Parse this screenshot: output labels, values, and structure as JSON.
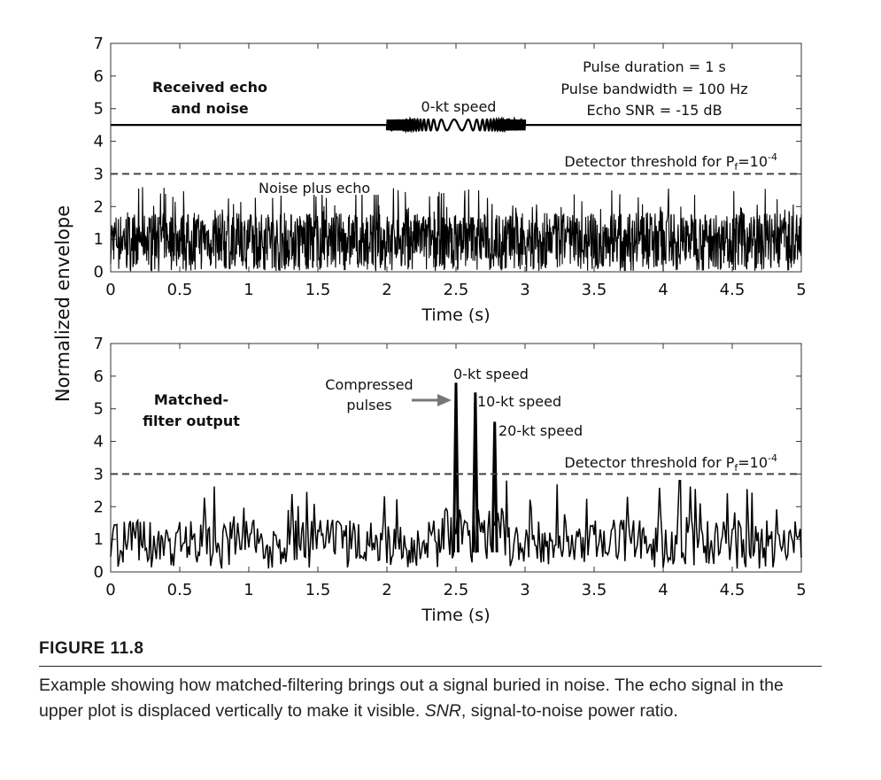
{
  "chart_data": [
    {
      "type": "line",
      "panel": "top",
      "xlabel": "Time (s)",
      "ylabel": "Normalized envelope",
      "xlim": [
        0,
        5
      ],
      "ylim": [
        0,
        7
      ],
      "xticks": [
        "0",
        "0.5",
        "1",
        "1.5",
        "2",
        "2.5",
        "3",
        "3.5",
        "4",
        "4.5",
        "5"
      ],
      "yticks": [
        "0",
        "1",
        "2",
        "3",
        "4",
        "5",
        "6",
        "7"
      ],
      "panel_label": [
        "Received echo",
        "and noise"
      ],
      "params": [
        "Pulse duration = 1 s",
        "Pulse bandwidth = 100 Hz",
        "Echo SNR = -15 dB"
      ],
      "echo_label": "0-kt speed",
      "noise_label": "Noise plus echo",
      "threshold": {
        "value": 3.0,
        "label_main": "Detector threshold for P",
        "label_sub": "f",
        "label_mid": "=10",
        "label_sup": "-4"
      },
      "series": [
        {
          "style": "offset-line",
          "baseline": 4.5,
          "pulse": [
            2.0,
            3.0
          ]
        },
        {
          "style": "noise",
          "x_start": 0,
          "x_end": 5,
          "mean": 0.9,
          "max": 2.6
        }
      ]
    },
    {
      "type": "line",
      "panel": "bottom",
      "xlabel": "Time (s)",
      "xlim": [
        0,
        5
      ],
      "ylim": [
        0,
        7
      ],
      "xticks": [
        "0",
        "0.5",
        "1",
        "1.5",
        "2",
        "2.5",
        "3",
        "3.5",
        "4",
        "4.5",
        "5"
      ],
      "yticks": [
        "0",
        "1",
        "2",
        "3",
        "4",
        "5",
        "6",
        "7"
      ],
      "panel_label": [
        "Matched-",
        "filter output"
      ],
      "pulses_label": [
        "Compressed",
        "pulses"
      ],
      "threshold": {
        "value": 3.0,
        "label_main": "Detector threshold for P",
        "label_sub": "f",
        "label_mid": "=10",
        "label_sup": "-4"
      },
      "peaks": [
        {
          "x": 2.5,
          "y": 5.8,
          "label": "0-kt speed"
        },
        {
          "x": 2.64,
          "y": 5.5,
          "label": "10-kt speed"
        },
        {
          "x": 2.78,
          "y": 4.6,
          "label": "20-kt speed"
        }
      ],
      "series": [
        {
          "style": "noise",
          "x_start": 0,
          "x_end": 5,
          "mean": 0.85,
          "max": 2.8
        }
      ]
    }
  ],
  "caption": {
    "label": "FIGURE 11.8",
    "text_a": "Example showing how matched-filtering brings out a signal buried in noise. The echo signal in the upper plot is displaced vertically to make it visible. ",
    "text_em": "SNR",
    "text_b": ", signal-to-noise power ratio."
  }
}
